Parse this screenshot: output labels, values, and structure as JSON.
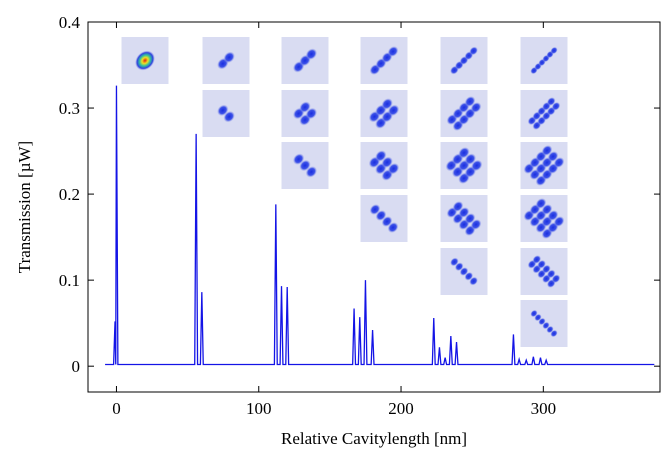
{
  "chart_data": {
    "type": "line",
    "xlabel": "Relative Cavitylength [nm]",
    "ylabel": "Transmission [µW]",
    "series": [
      {
        "color": "#1414e6",
        "x": [
          -8,
          -2,
          -1,
          -0.5,
          0,
          1,
          55,
          56,
          57,
          59,
          60,
          61,
          111,
          112,
          113,
          115,
          116,
          117,
          119,
          120,
          121,
          166,
          167,
          168,
          170,
          171,
          172,
          174,
          175,
          176,
          179,
          180,
          181,
          222,
          223,
          224,
          226,
          227,
          228,
          230,
          231,
          232,
          234,
          235,
          236,
          238,
          239,
          240,
          278,
          279,
          280,
          282,
          283,
          284,
          287,
          288,
          289,
          292,
          293,
          294,
          297,
          298,
          299,
          301,
          302,
          303,
          378
        ],
        "values": [
          0.002,
          0.002,
          0.052,
          0.002,
          0.326,
          0.002,
          0.002,
          0.27,
          0.002,
          0.002,
          0.086,
          0.002,
          0.002,
          0.188,
          0.002,
          0.002,
          0.093,
          0.002,
          0.002,
          0.092,
          0.002,
          0.002,
          0.067,
          0.002,
          0.002,
          0.057,
          0.002,
          0.002,
          0.1,
          0.002,
          0.002,
          0.042,
          0.002,
          0.002,
          0.056,
          0.002,
          0.002,
          0.022,
          0.002,
          0.002,
          0.01,
          0.002,
          0.002,
          0.035,
          0.002,
          0.002,
          0.028,
          0.002,
          0.002,
          0.037,
          0.002,
          0.002,
          0.008,
          0.002,
          0.002,
          0.007,
          0.002,
          0.002,
          0.011,
          0.002,
          0.002,
          0.01,
          0.002,
          0.002,
          0.007,
          0.002,
          0.002
        ]
      }
    ],
    "xlim": [
      -20,
      382
    ],
    "ylim": [
      -0.03,
      0.4
    ],
    "xticks": [
      0,
      100,
      200,
      300
    ],
    "yticks": [
      0,
      0.1,
      0.2,
      0.3,
      0.4
    ]
  }
}
